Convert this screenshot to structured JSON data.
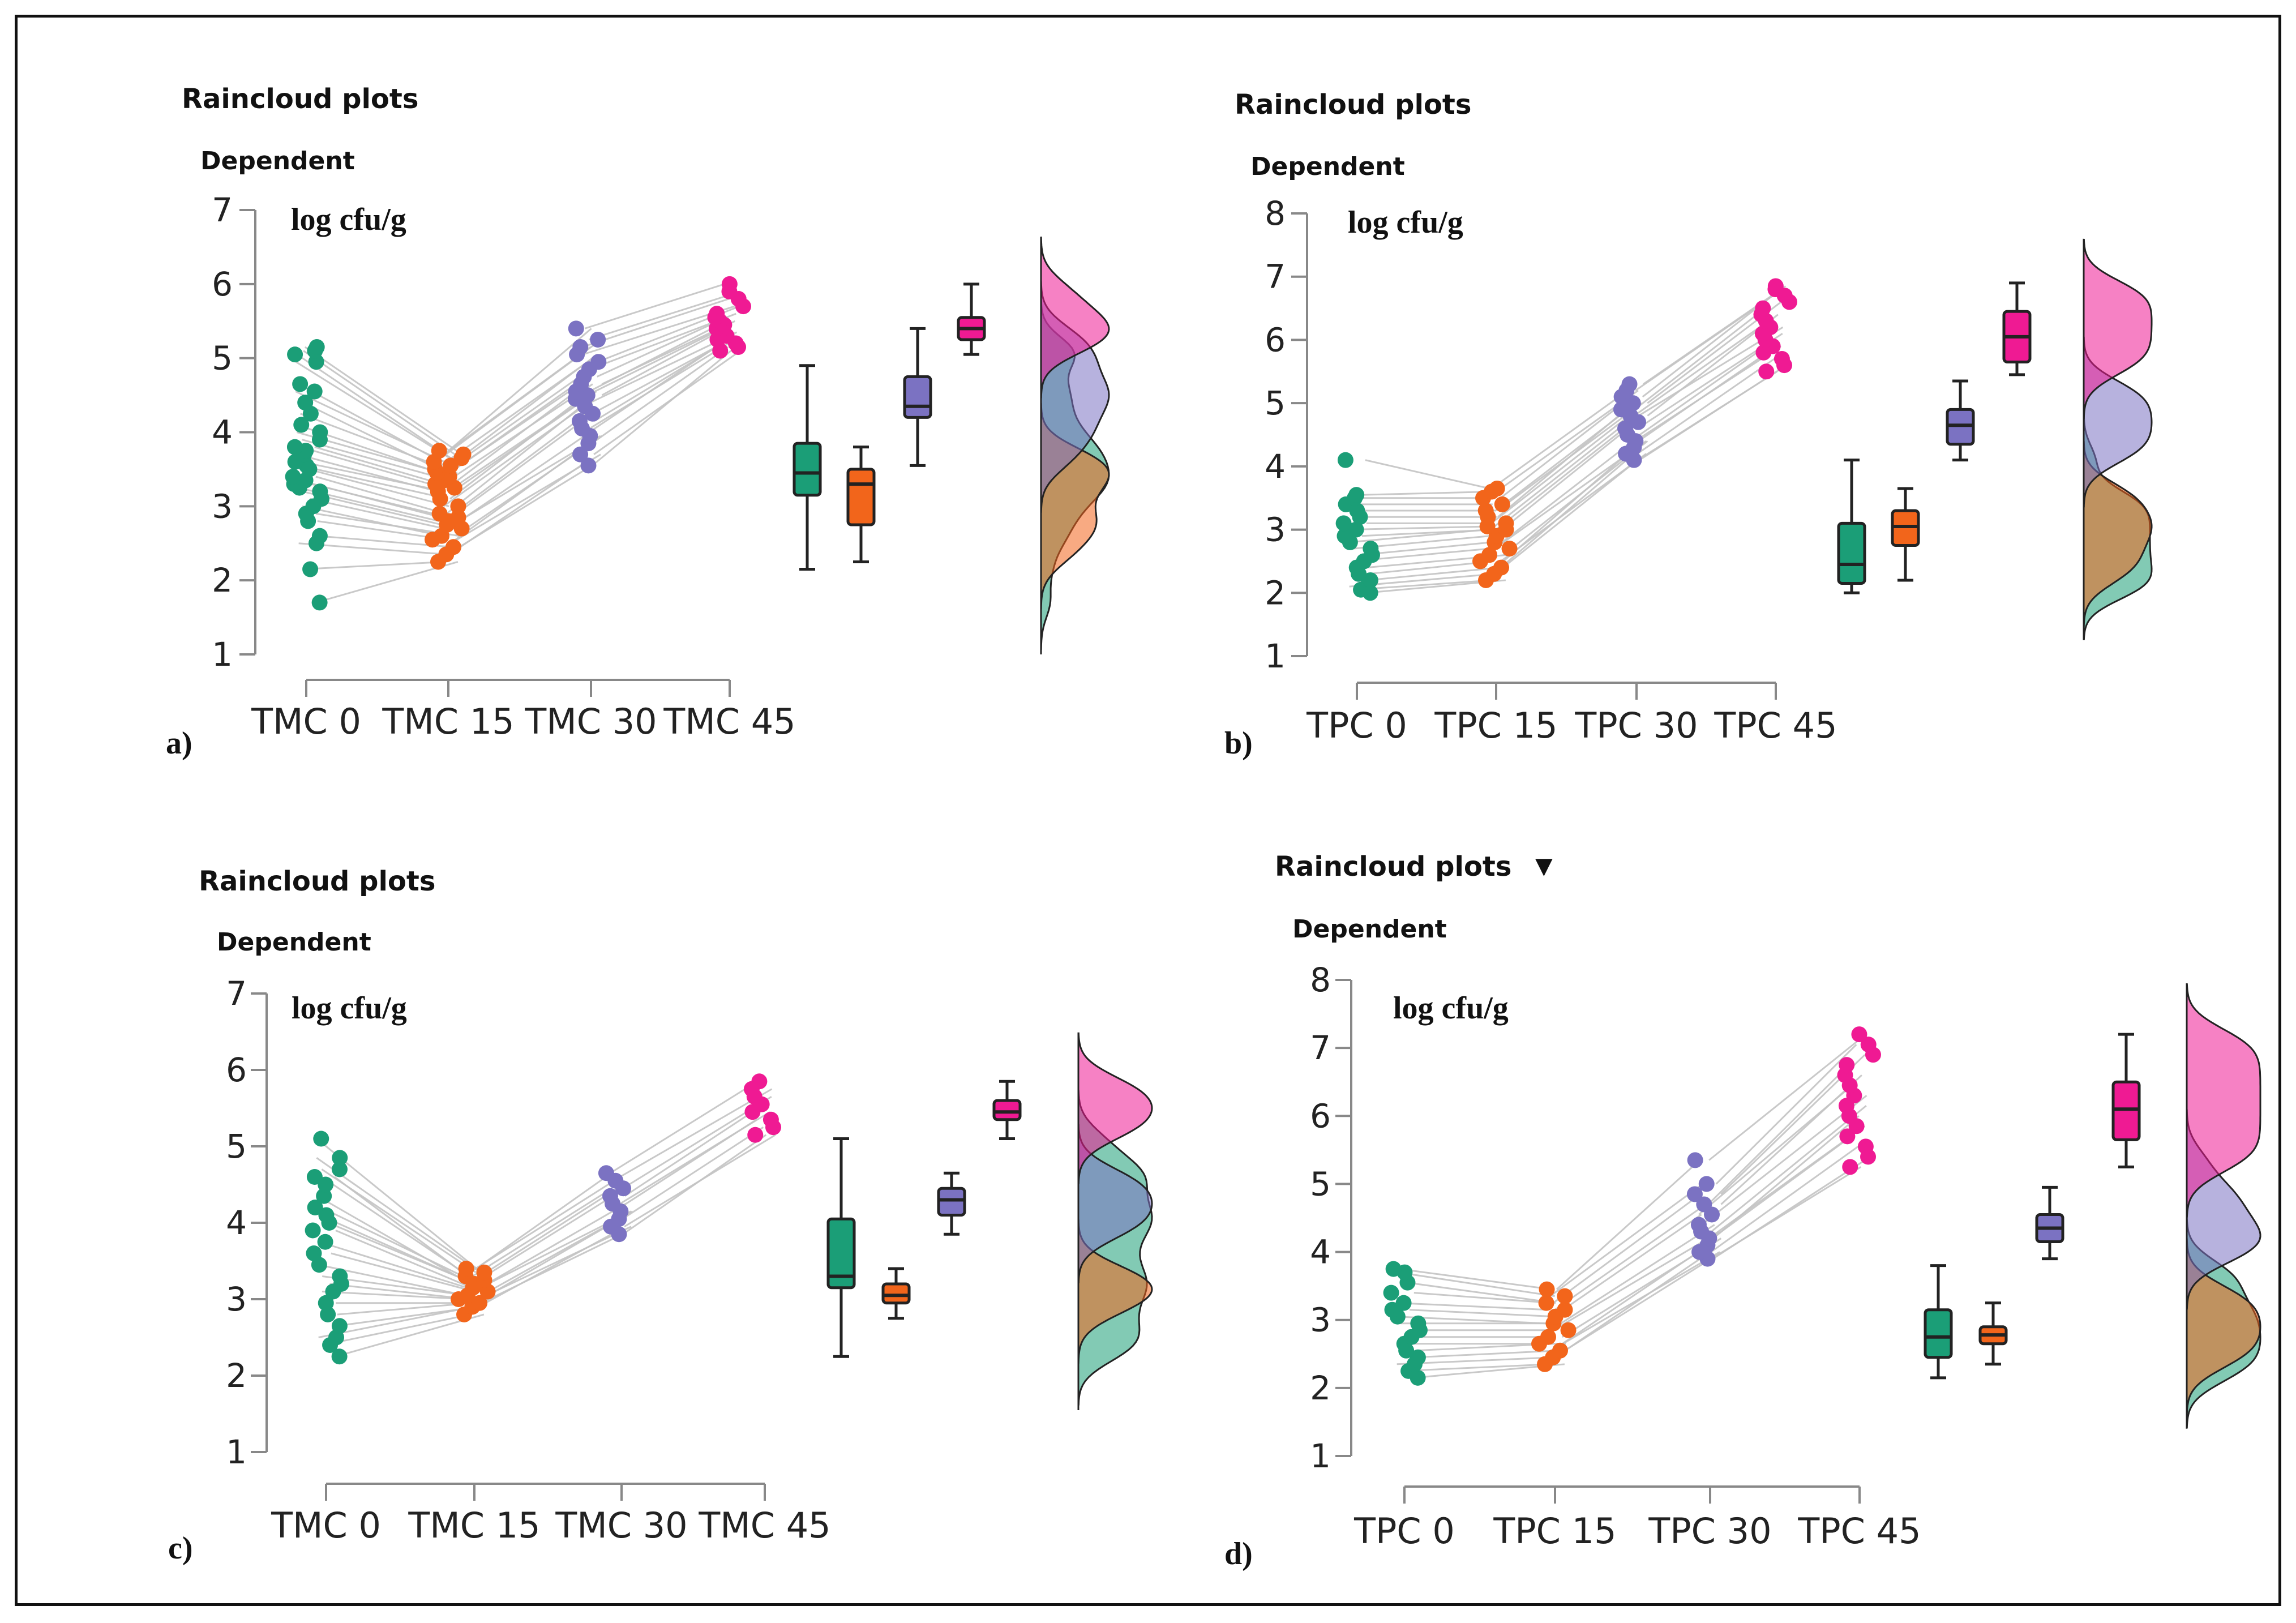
{
  "figure": {
    "marker_glyph": "▼"
  },
  "colors": {
    "g1": "#1b9e77",
    "g2": "#f2651b",
    "g3": "#7b72c2",
    "g4": "#ef1a93",
    "line": "#c4c4c4"
  },
  "chart_data": [
    {
      "type": "raincloud",
      "panel_label": "a)",
      "title": "Raincloud plots",
      "dependent_label": "Dependent",
      "unit_label": "log cfu/g",
      "ylim": [
        1,
        7
      ],
      "yticks": [
        1,
        2,
        3,
        4,
        5,
        6,
        7
      ],
      "categories": [
        "TMC 0",
        "TMC 15",
        "TMC 30",
        "TMC 45"
      ],
      "series": [
        {
          "name": "TMC 0",
          "points": [
            1.7,
            2.15,
            2.5,
            2.6,
            2.8,
            2.9,
            3.0,
            3.1,
            3.2,
            3.25,
            3.3,
            3.35,
            3.4,
            3.5,
            3.55,
            3.6,
            3.7,
            3.75,
            3.8,
            3.9,
            4.0,
            4.1,
            4.25,
            4.4,
            4.55,
            4.65,
            4.95,
            5.05,
            5.1,
            5.15
          ],
          "box": {
            "min": 2.15,
            "q1": 3.15,
            "median": 3.45,
            "q3": 3.85,
            "max": 4.9
          }
        },
        {
          "name": "TMC 15",
          "points": [
            2.25,
            2.35,
            2.45,
            2.55,
            2.6,
            2.7,
            2.75,
            2.8,
            2.85,
            2.9,
            3.0,
            3.1,
            3.2,
            3.25,
            3.3,
            3.35,
            3.4,
            3.45,
            3.5,
            3.55,
            3.6,
            3.65,
            3.7,
            3.75
          ],
          "box": {
            "min": 2.25,
            "q1": 2.75,
            "median": 3.3,
            "q3": 3.5,
            "max": 3.8
          }
        },
        {
          "name": "TMC 30",
          "points": [
            3.55,
            3.7,
            3.85,
            3.95,
            4.05,
            4.15,
            4.25,
            4.35,
            4.45,
            4.5,
            4.55,
            4.65,
            4.75,
            4.85,
            4.95,
            5.05,
            5.15,
            5.25,
            5.4
          ],
          "box": {
            "min": 3.55,
            "q1": 4.2,
            "median": 4.35,
            "q3": 4.75,
            "max": 5.4
          }
        },
        {
          "name": "TMC 45",
          "points": [
            5.1,
            5.15,
            5.2,
            5.25,
            5.3,
            5.35,
            5.4,
            5.45,
            5.5,
            5.55,
            5.6,
            5.7,
            5.8,
            5.9,
            6.0
          ],
          "box": {
            "min": 5.05,
            "q1": 5.25,
            "median": 5.4,
            "q3": 5.55,
            "max": 6.0
          }
        }
      ]
    },
    {
      "type": "raincloud",
      "panel_label": "b)",
      "title": "Raincloud plots",
      "dependent_label": "Dependent",
      "unit_label": "log cfu/g",
      "ylim": [
        1,
        8
      ],
      "yticks": [
        1,
        2,
        3,
        4,
        5,
        6,
        7,
        8
      ],
      "categories": [
        "TPC 0",
        "TPC 15",
        "TPC 30",
        "TPC 45"
      ],
      "series": [
        {
          "name": "TPC 0",
          "points": [
            2.0,
            2.05,
            2.1,
            2.2,
            2.3,
            2.4,
            2.5,
            2.6,
            2.7,
            2.8,
            2.9,
            3.0,
            3.1,
            3.2,
            3.3,
            3.4,
            3.5,
            3.55,
            4.1
          ],
          "box": {
            "min": 2.0,
            "q1": 2.15,
            "median": 2.45,
            "q3": 3.1,
            "max": 4.1
          }
        },
        {
          "name": "TPC 15",
          "points": [
            2.2,
            2.3,
            2.4,
            2.5,
            2.6,
            2.7,
            2.8,
            2.9,
            3.0,
            3.05,
            3.1,
            3.2,
            3.3,
            3.4,
            3.5,
            3.6,
            3.65
          ],
          "box": {
            "min": 2.2,
            "q1": 2.75,
            "median": 3.05,
            "q3": 3.3,
            "max": 3.65
          }
        },
        {
          "name": "TPC 30",
          "points": [
            4.1,
            4.2,
            4.3,
            4.4,
            4.5,
            4.6,
            4.7,
            4.8,
            4.9,
            5.0,
            5.1,
            5.2,
            5.3
          ],
          "box": {
            "min": 4.1,
            "q1": 4.35,
            "median": 4.65,
            "q3": 4.9,
            "max": 5.35
          }
        },
        {
          "name": "TPC 45",
          "points": [
            5.5,
            5.6,
            5.7,
            5.8,
            5.9,
            6.0,
            6.1,
            6.2,
            6.3,
            6.4,
            6.5,
            6.6,
            6.7,
            6.8,
            6.85
          ],
          "box": {
            "min": 5.45,
            "q1": 5.65,
            "median": 6.05,
            "q3": 6.45,
            "max": 6.9
          }
        }
      ]
    },
    {
      "type": "raincloud",
      "panel_label": "c)",
      "title": "Raincloud plots",
      "dependent_label": "Dependent",
      "unit_label": "log cfu/g",
      "ylim": [
        1,
        7
      ],
      "yticks": [
        1,
        2,
        3,
        4,
        5,
        6,
        7
      ],
      "categories": [
        "TMC 0",
        "TMC 15",
        "TMC 30",
        "TMC 45"
      ],
      "series": [
        {
          "name": "TMC 0",
          "points": [
            2.25,
            2.4,
            2.5,
            2.65,
            2.8,
            2.95,
            3.1,
            3.2,
            3.3,
            3.45,
            3.6,
            3.75,
            3.9,
            4.0,
            4.1,
            4.2,
            4.35,
            4.5,
            4.6,
            4.7,
            4.85,
            5.1
          ],
          "box": {
            "min": 2.25,
            "q1": 3.15,
            "median": 3.3,
            "q3": 4.05,
            "max": 5.1
          }
        },
        {
          "name": "TMC 15",
          "points": [
            2.8,
            2.9,
            2.95,
            3.0,
            3.05,
            3.1,
            3.15,
            3.2,
            3.25,
            3.3,
            3.35,
            3.4
          ],
          "box": {
            "min": 2.75,
            "q1": 2.95,
            "median": 3.05,
            "q3": 3.2,
            "max": 3.4
          }
        },
        {
          "name": "TMC 30",
          "points": [
            3.85,
            3.95,
            4.05,
            4.15,
            4.25,
            4.35,
            4.45,
            4.55,
            4.65
          ],
          "box": {
            "min": 3.85,
            "q1": 4.1,
            "median": 4.3,
            "q3": 4.45,
            "max": 4.65
          }
        },
        {
          "name": "TMC 45",
          "points": [
            5.15,
            5.25,
            5.35,
            5.45,
            5.55,
            5.65,
            5.75,
            5.85
          ],
          "box": {
            "min": 5.1,
            "q1": 5.35,
            "median": 5.45,
            "q3": 5.6,
            "max": 5.85
          }
        }
      ]
    },
    {
      "type": "raincloud",
      "panel_label": "d)",
      "title": "Raincloud plots",
      "dependent_label": "Dependent",
      "unit_label": "log cfu/g",
      "ylim": [
        1,
        8
      ],
      "yticks": [
        1,
        2,
        3,
        4,
        5,
        6,
        7,
        8
      ],
      "categories": [
        "TPC 0",
        "TPC 15",
        "TPC 30",
        "TPC 45"
      ],
      "series": [
        {
          "name": "TPC 0",
          "points": [
            2.15,
            2.25,
            2.35,
            2.45,
            2.55,
            2.65,
            2.75,
            2.85,
            2.95,
            3.05,
            3.15,
            3.25,
            3.4,
            3.55,
            3.7,
            3.75
          ],
          "box": {
            "min": 2.15,
            "q1": 2.45,
            "median": 2.75,
            "q3": 3.15,
            "max": 3.8
          }
        },
        {
          "name": "TPC 15",
          "points": [
            2.35,
            2.45,
            2.55,
            2.65,
            2.75,
            2.85,
            2.95,
            3.05,
            3.15,
            3.25,
            3.35,
            3.45
          ],
          "box": {
            "min": 2.35,
            "q1": 2.65,
            "median": 2.78,
            "q3": 2.9,
            "max": 3.25
          }
        },
        {
          "name": "TPC 30",
          "points": [
            3.9,
            4.0,
            4.1,
            4.2,
            4.3,
            4.4,
            4.55,
            4.7,
            4.85,
            5.0,
            5.35
          ],
          "box": {
            "min": 3.9,
            "q1": 4.15,
            "median": 4.35,
            "q3": 4.55,
            "max": 4.95
          }
        },
        {
          "name": "TPC 45",
          "points": [
            5.25,
            5.4,
            5.55,
            5.7,
            5.85,
            6.0,
            6.15,
            6.3,
            6.45,
            6.6,
            6.75,
            6.9,
            7.05,
            7.2
          ],
          "box": {
            "min": 5.25,
            "q1": 5.65,
            "median": 6.1,
            "q3": 6.5,
            "max": 7.2
          }
        }
      ]
    }
  ]
}
